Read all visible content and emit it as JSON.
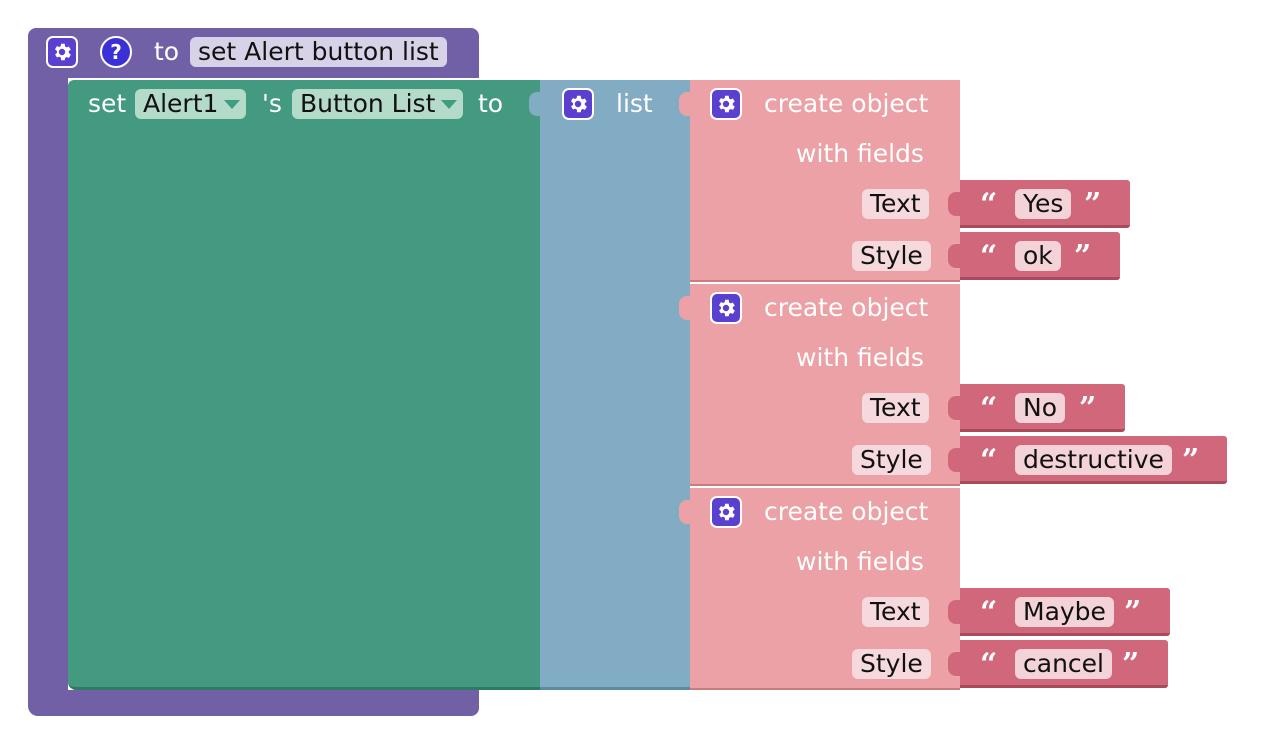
{
  "procedure": {
    "to_label": "to",
    "name": "set Alert button list"
  },
  "set_block": {
    "set_label": "set",
    "component": "Alert1",
    "possessive": "'s",
    "property": "Button List",
    "to_label": "to"
  },
  "list_block": {
    "label": "list"
  },
  "objects": [
    {
      "create_label": "create object",
      "fields_label": "with fields",
      "fields": [
        {
          "key": "Text",
          "value": "Yes"
        },
        {
          "key": "Style",
          "value": "ok"
        }
      ]
    },
    {
      "create_label": "create object",
      "fields_label": "with fields",
      "fields": [
        {
          "key": "Text",
          "value": "No"
        },
        {
          "key": "Style",
          "value": "destructive"
        }
      ]
    },
    {
      "create_label": "create object",
      "fields_label": "with fields",
      "fields": [
        {
          "key": "Text",
          "value": "Maybe"
        },
        {
          "key": "Style",
          "value": "cancel"
        }
      ]
    }
  ],
  "quotes": {
    "open": "“",
    "close": "”"
  },
  "icons": {
    "mutator": "gear-icon",
    "help": "question-icon",
    "dropdown": "chevron-down-icon"
  },
  "colors": {
    "procedure": "#7260a6",
    "set": "#439a80",
    "list": "#82abc4",
    "object": "#eba1a5",
    "text": "#d0677a"
  }
}
